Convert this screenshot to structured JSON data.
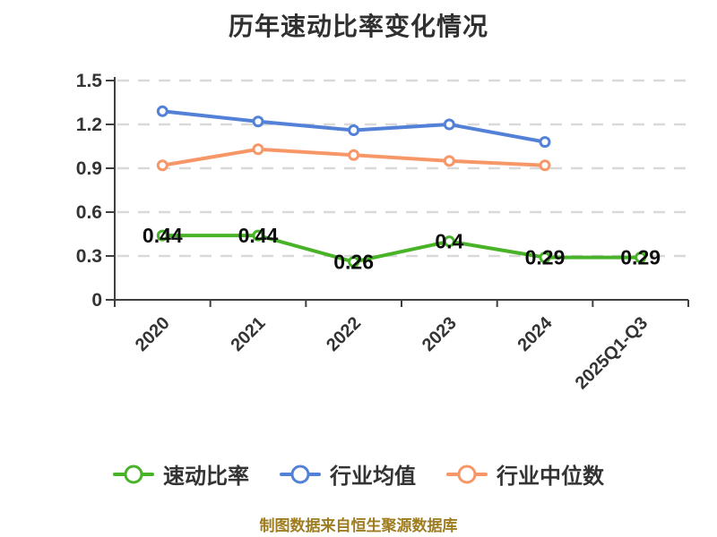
{
  "title": "历年速动比率变化情况",
  "source_note": "制图数据来自恒生聚源数据库",
  "colors": {
    "title": "#303030",
    "axis": "#3F3F3F",
    "grid": "#D9D9D9",
    "tick_label": "#333333",
    "value_label": "#0D0D0D",
    "marker_fill": "#FFFFFF",
    "legend_text": "#333333",
    "source_note": "#9E7C20",
    "background": "#FFFFFF"
  },
  "chart_data": {
    "type": "line",
    "title": "历年速动比率变化情况",
    "categories": [
      "2020",
      "2021",
      "2022",
      "2023",
      "2024",
      "2025Q1-Q3"
    ],
    "xlabel": "",
    "ylabel": "",
    "ylim": [
      0,
      1.5
    ],
    "y_ticks": [
      "0",
      "0.3",
      "0.6",
      "0.9",
      "1.2",
      "1.5"
    ],
    "y_tick_values": [
      0,
      0.3,
      0.6,
      0.9,
      1.2,
      1.5
    ],
    "grid": "horizontal-dashed",
    "legend_position": "bottom",
    "series": [
      {
        "key": "quick-ratio",
        "name": "速动比率",
        "color": "#49B328",
        "values": [
          0.44,
          0.44,
          0.26,
          0.4,
          0.29,
          0.29
        ],
        "point_labels": [
          "0.44",
          "0.44",
          "0.26",
          "0.4",
          "0.29",
          "0.29"
        ]
      },
      {
        "key": "industry-average",
        "name": "行业均值",
        "color": "#5381D8",
        "values": [
          1.29,
          1.22,
          1.16,
          1.2,
          1.08
        ],
        "point_labels": null
      },
      {
        "key": "industry-median",
        "name": "行业中位数",
        "color": "#F79768",
        "values": [
          0.92,
          1.03,
          0.99,
          0.95,
          0.92
        ],
        "point_labels": null
      }
    ]
  }
}
